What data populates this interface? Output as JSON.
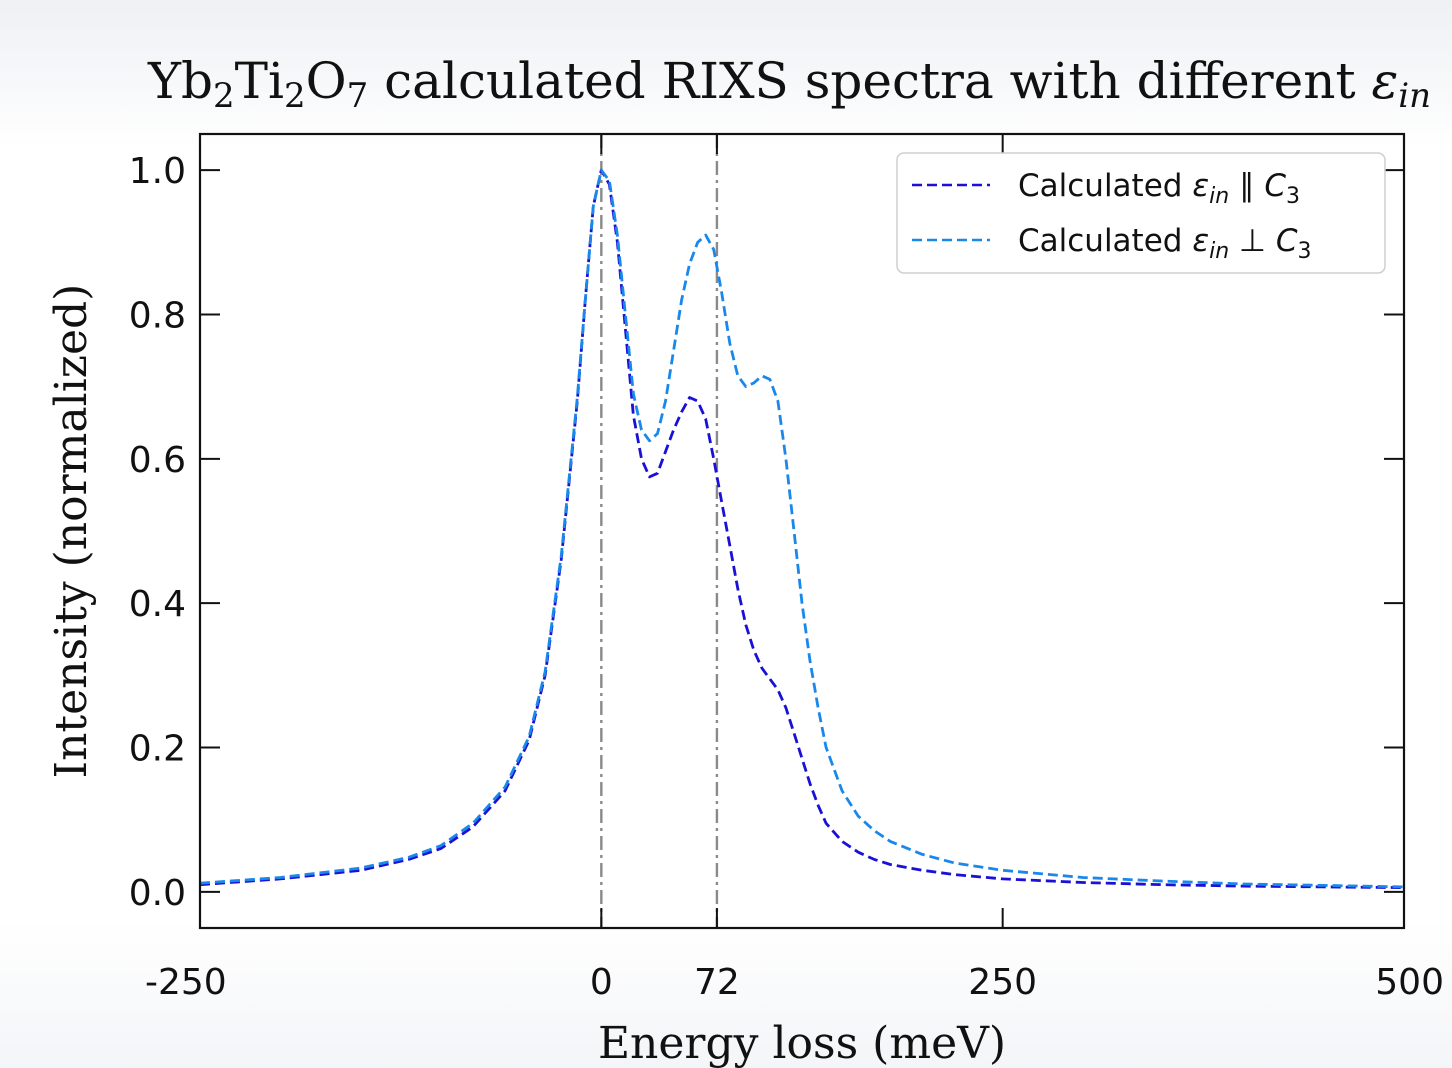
{
  "chart_data": {
    "type": "line",
    "title": {
      "prefix": "Yb",
      "sub1": "2",
      "mid1": "Ti",
      "sub2": "2",
      "mid2": "O",
      "sub3": "7",
      "rest": " calculated RIXS spectra with different ",
      "eps": "ε",
      "eps_sub": "in"
    },
    "xlabel": "Energy loss (meV)",
    "ylabel": "Intensity (normalized)",
    "xlim": [
      -250,
      500
    ],
    "ylim": [
      -0.05,
      1.05
    ],
    "xticks": [
      -250,
      0,
      72,
      250,
      500
    ],
    "xtick_labels": [
      "-250",
      "0",
      "72",
      "250",
      "500"
    ],
    "yticks": [
      0.0,
      0.2,
      0.4,
      0.6,
      0.8,
      1.0
    ],
    "ytick_labels": [
      "0.0",
      "0.2",
      "0.4",
      "0.6",
      "0.8",
      "1.0"
    ],
    "vlines": [
      0,
      72
    ],
    "legend_position": "top-right",
    "grid": false,
    "series": [
      {
        "label_prefix": "Calculated ",
        "label_eps": "ε",
        "label_eps_sub": "in",
        "label_rel": " ∥ ",
        "label_c": "C",
        "label_c_sub": "3",
        "color": "#1a10d6",
        "dash": "dashed",
        "x": [
          -250,
          -200,
          -150,
          -120,
          -100,
          -80,
          -60,
          -45,
          -35,
          -25,
          -15,
          -10,
          -5,
          0,
          5,
          10,
          15,
          20,
          25,
          30,
          35,
          40,
          45,
          50,
          55,
          60,
          65,
          70,
          75,
          80,
          85,
          90,
          95,
          100,
          105,
          110,
          115,
          120,
          125,
          130,
          135,
          140,
          150,
          160,
          170,
          180,
          200,
          220,
          250,
          300,
          350,
          400,
          450,
          500
        ],
        "y": [
          0.01,
          0.018,
          0.03,
          0.045,
          0.06,
          0.09,
          0.14,
          0.21,
          0.3,
          0.46,
          0.68,
          0.82,
          0.95,
          1.0,
          0.98,
          0.9,
          0.78,
          0.66,
          0.6,
          0.575,
          0.58,
          0.61,
          0.64,
          0.665,
          0.685,
          0.68,
          0.655,
          0.6,
          0.54,
          0.48,
          0.42,
          0.37,
          0.335,
          0.31,
          0.295,
          0.28,
          0.255,
          0.22,
          0.185,
          0.15,
          0.12,
          0.095,
          0.07,
          0.055,
          0.045,
          0.038,
          0.03,
          0.024,
          0.018,
          0.013,
          0.01,
          0.008,
          0.007,
          0.006
        ]
      },
      {
        "label_prefix": "Calculated ",
        "label_eps": "ε",
        "label_eps_sub": "in",
        "label_rel": " ⊥ ",
        "label_c": "C",
        "label_c_sub": "3",
        "color": "#1a88ea",
        "dash": "dashed",
        "x": [
          -250,
          -200,
          -150,
          -120,
          -100,
          -80,
          -60,
          -45,
          -35,
          -25,
          -15,
          -10,
          -5,
          0,
          5,
          10,
          15,
          20,
          25,
          30,
          35,
          40,
          45,
          50,
          55,
          60,
          65,
          70,
          75,
          80,
          85,
          90,
          95,
          100,
          105,
          110,
          115,
          120,
          125,
          130,
          135,
          140,
          150,
          160,
          170,
          180,
          200,
          220,
          250,
          300,
          350,
          400,
          450,
          500
        ],
        "y": [
          0.012,
          0.02,
          0.033,
          0.048,
          0.064,
          0.095,
          0.145,
          0.215,
          0.305,
          0.465,
          0.685,
          0.82,
          0.95,
          1.0,
          0.985,
          0.91,
          0.8,
          0.69,
          0.64,
          0.625,
          0.635,
          0.68,
          0.75,
          0.82,
          0.87,
          0.9,
          0.91,
          0.89,
          0.83,
          0.76,
          0.715,
          0.7,
          0.705,
          0.715,
          0.71,
          0.68,
          0.6,
          0.5,
          0.4,
          0.32,
          0.255,
          0.2,
          0.14,
          0.105,
          0.085,
          0.07,
          0.052,
          0.04,
          0.03,
          0.02,
          0.015,
          0.011,
          0.009,
          0.007
        ]
      }
    ]
  }
}
